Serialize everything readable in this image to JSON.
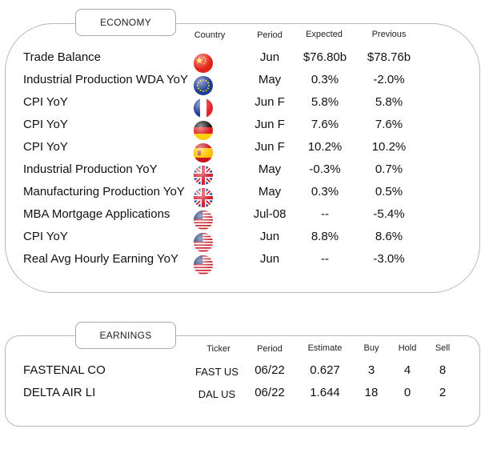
{
  "economy": {
    "title": "ECONOMY",
    "headers": {
      "country": "Country",
      "period": "Period",
      "expected": "Expected",
      "previous": "Previous"
    },
    "rows": [
      {
        "event": "Trade Balance",
        "flag": "china-flag-icon",
        "period": "Jun",
        "expected": "$76.80b",
        "previous": "$78.76b"
      },
      {
        "event": "Industrial Production WDA YoY",
        "flag": "eu-flag-icon",
        "period": "May",
        "expected": "0.3%",
        "previous": "-2.0%"
      },
      {
        "event": "CPI YoY",
        "flag": "france-flag-icon",
        "period": "Jun F",
        "expected": "5.8%",
        "previous": "5.8%"
      },
      {
        "event": "CPI YoY",
        "flag": "germany-flag-icon",
        "period": "Jun F",
        "expected": "7.6%",
        "previous": "7.6%"
      },
      {
        "event": "CPI YoY",
        "flag": "spain-flag-icon",
        "period": "Jun F",
        "expected": "10.2%",
        "previous": "10.2%"
      },
      {
        "event": "Industrial Production YoY",
        "flag": "uk-flag-icon",
        "period": "May",
        "expected": "-0.3%",
        "previous": "0.7%"
      },
      {
        "event": "Manufacturing Production YoY",
        "flag": "uk-flag-icon",
        "period": "May",
        "expected": "0.3%",
        "previous": "0.5%"
      },
      {
        "event": "MBA Mortgage Applications",
        "flag": "us-flag-icon",
        "period": "Jul-08",
        "expected": "--",
        "previous": "-5.4%"
      },
      {
        "event": "CPI YoY",
        "flag": "us-flag-icon",
        "period": "Jun",
        "expected": "8.8%",
        "previous": "8.6%"
      },
      {
        "event": "Real Avg Hourly Earning YoY",
        "flag": "us-flag-icon",
        "period": "Jun",
        "expected": "--",
        "previous": "-3.0%"
      }
    ]
  },
  "earnings": {
    "title": "EARNINGS",
    "headers": {
      "ticker": "Ticker",
      "period": "Period",
      "estimate": "Estimate",
      "buy": "Buy",
      "hold": "Hold",
      "sell": "Sell"
    },
    "rows": [
      {
        "company": "FASTENAL CO",
        "ticker": "FAST US",
        "period": "06/22",
        "estimate": "0.627",
        "buy": "3",
        "hold": "4",
        "sell": "8"
      },
      {
        "company": "DELTA AIR LI",
        "ticker": "DAL US",
        "period": "06/22",
        "estimate": "1.644",
        "buy": "18",
        "hold": "0",
        "sell": "2"
      }
    ]
  }
}
